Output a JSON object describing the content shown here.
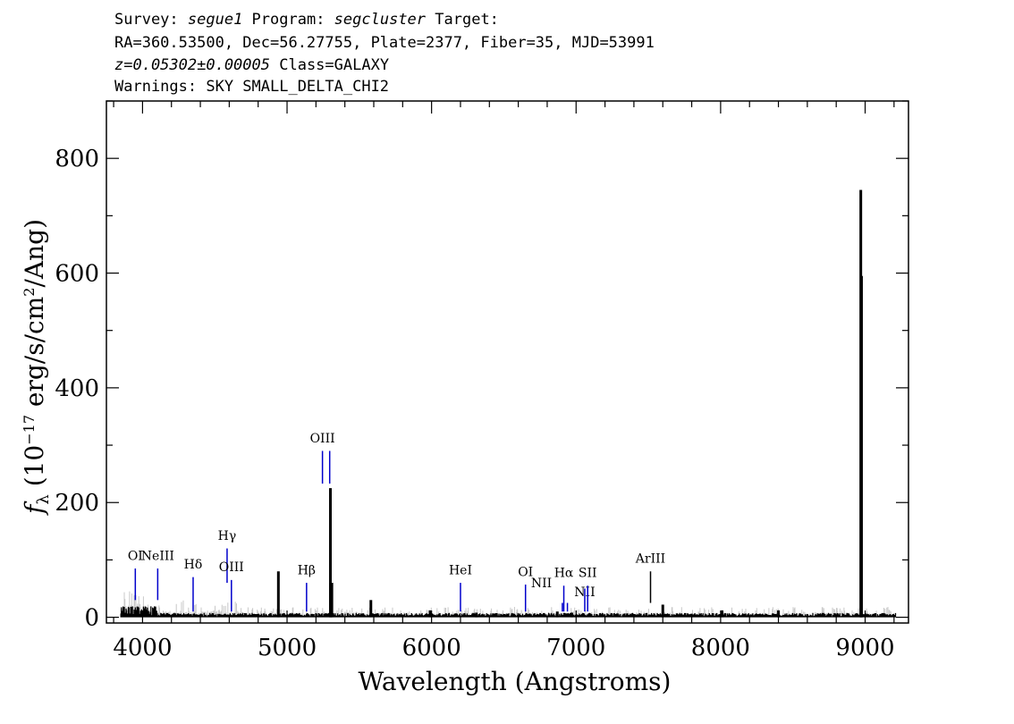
{
  "header": {
    "line1": {
      "p1": "Survey: ",
      "survey": "segue1",
      "p2": " Program: ",
      "program": "segcluster",
      "p3": " Target:"
    },
    "line2": "RA=360.53500, Dec=56.27755, Plate=2377, Fiber=35, MJD=53991",
    "line3": {
      "z": "z=0.05302±0.00005",
      "rest": " Class=GALAXY"
    },
    "line4": "Warnings: SKY SMALL_DELTA_CHI2"
  },
  "chart_data": {
    "type": "line",
    "xlabel": "Wavelength (Angstroms)",
    "ylabel": {
      "main": "f",
      "sub": "λ",
      "rest1": " (10",
      "sup1": "−17",
      "rest2": " erg/s/cm",
      "sup2": "2",
      "rest3": "/Ang)"
    },
    "xlim": [
      3750,
      9300
    ],
    "ylim": [
      -10,
      900
    ],
    "x_ticks": [
      4000,
      5000,
      6000,
      7000,
      8000,
      9000
    ],
    "y_ticks": [
      0,
      200,
      400,
      600,
      800
    ],
    "grid": false,
    "series": [
      {
        "color": "#000000",
        "noise_color": "#c8c8c8",
        "baseline": 5,
        "spikes": [
          {
            "x": 4940,
            "y": 80
          },
          {
            "x": 5300,
            "y": 225
          },
          {
            "x": 5310,
            "y": 60
          },
          {
            "x": 5580,
            "y": 30
          },
          {
            "x": 5990,
            "y": 12
          },
          {
            "x": 6310,
            "y": 8
          },
          {
            "x": 6870,
            "y": 10
          },
          {
            "x": 6970,
            "y": 8
          },
          {
            "x": 7600,
            "y": 22
          },
          {
            "x": 8010,
            "y": 12
          },
          {
            "x": 8400,
            "y": 12
          },
          {
            "x": 8970,
            "y": 745
          },
          {
            "x": 8975,
            "y": 595
          }
        ]
      }
    ],
    "emission_lines": [
      {
        "label": "OI",
        "x": 3950,
        "y_bottom": 30,
        "y_top": 85,
        "label_y": 100
      },
      {
        "label": "NeIII",
        "x": 4105,
        "y_bottom": 30,
        "y_top": 85,
        "label_y": 100
      },
      {
        "label": "Hδ",
        "x": 4350,
        "y_bottom": 10,
        "y_top": 70,
        "label_y": 85
      },
      {
        "label": "Hγ",
        "x": 4585,
        "y_bottom": 60,
        "y_top": 120,
        "label_y": 135
      },
      {
        "label": "OIII",
        "x": 4615,
        "y_bottom": 10,
        "y_top": 65,
        "label_y": 80
      },
      {
        "label": "Hβ",
        "x": 5135,
        "y_bottom": 10,
        "y_top": 60,
        "label_y": 75
      },
      {
        "label": "OIII",
        "x": 5245,
        "y_bottom": 233,
        "y_top": 290,
        "label_y": 305
      },
      {
        "label": "",
        "x": 5295,
        "y_bottom": 233,
        "y_top": 290,
        "label_y": 305
      },
      {
        "label": "HeI",
        "x": 6200,
        "y_bottom": 10,
        "y_top": 60,
        "label_y": 75
      },
      {
        "label": "OI",
        "x": 6650,
        "y_bottom": 10,
        "y_top": 57,
        "label_y": 72
      },
      {
        "label": "NII",
        "x": 6905,
        "y_bottom": 10,
        "y_top": 25,
        "label_y": 85,
        "label_x": 6760,
        "label_y_override": 52
      },
      {
        "label": "Hα",
        "x": 6915,
        "y_bottom": 10,
        "y_top": 55,
        "label_y": 70
      },
      {
        "label": "",
        "x": 6940,
        "y_bottom": 10,
        "y_top": 25,
        "label_y": 40
      },
      {
        "label": "NII",
        "x": 7060,
        "y_bottom": 10,
        "y_top": 50,
        "label_y": 37
      },
      {
        "label": "SII",
        "x": 7080,
        "y_bottom": 10,
        "y_top": 55,
        "label_y": 70
      },
      {
        "label": "ArIII",
        "x": 7515,
        "y_bottom": 25,
        "y_top": 80,
        "label_y": 95
      }
    ]
  },
  "colors": {
    "line_marker_blue": "#0000cc",
    "line_marker_black": "#000000"
  }
}
